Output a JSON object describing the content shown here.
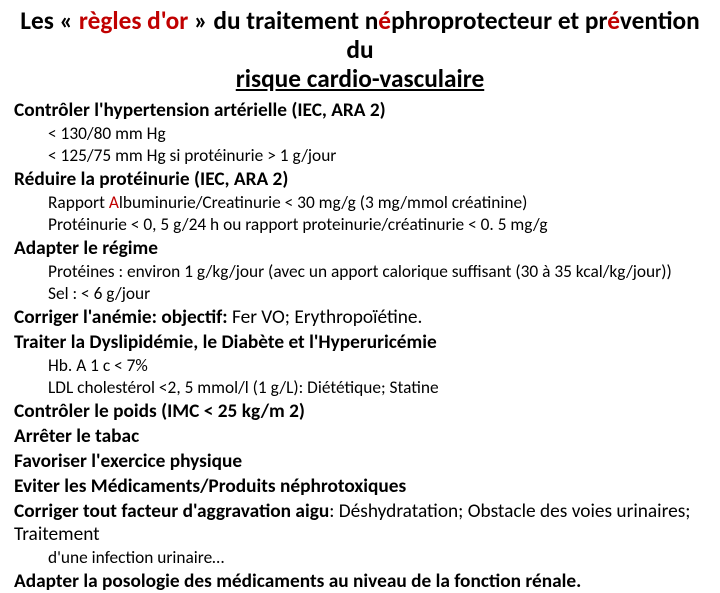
{
  "colors": {
    "accent": "#c00000",
    "text": "#000000",
    "background": "#ffffff"
  },
  "typography": {
    "title_fontsize_pt": 19,
    "h1_fontsize_pt": 14.5,
    "sub_fontsize_pt": 13
  },
  "title": {
    "part1_plain": "Les «",
    "part2_accent": " règles d'or ",
    "part3_plain": "» du traitement n",
    "part4_accent": "é",
    "part5_plain": "phroprotecteur et pr",
    "part6_accent": "é",
    "part7_plain": "vention du",
    "line2": "risque cardio-vasculaire"
  },
  "sections": [
    {
      "heading": "Contrôler l'hypertension artérielle (IEC, ARA 2)",
      "subs": [
        "< 130/80 mm Hg",
        "< 125/75 mm Hg si protéinurie > 1 g/jour"
      ]
    },
    {
      "heading": "Réduire la protéinurie (IEC, ARA 2)",
      "subs_rich": [
        {
          "pre": "Rapport ",
          "accent": "A",
          "post": "lbuminurie/Creatinurie < 30 mg/g (3 mg/mmol créatinine)"
        },
        {
          "pre": "Protéinurie < 0, 5 g/24 h ou rapport proteinurie/créatinurie < 0. 5 mg/g",
          "accent": "",
          "post": ""
        }
      ]
    },
    {
      "heading": "Adapter le régime",
      "subs": [
        "Protéines : environ 1 g/kg/jour (avec un apport calorique suffisant (30 à 35 kcal/kg/jour))",
        "Sel : < 6 g/jour"
      ]
    },
    {
      "heading_pre": "Corriger l'anémie: objectif:",
      "heading_post": "  Fer VO;  Erythropoïétine."
    },
    {
      "heading": "Traiter la Dyslipidémie, le Diabète et l'Hyperuricémie",
      "subs": [
        "Hb. A 1 c < 7%",
        "LDL  cholestérol <2, 5 mmol/l (1 g/L): Diététique; Statine"
      ]
    },
    {
      "heading": "Contrôler le poids (IMC < 25 kg/m 2)"
    },
    {
      "heading": "Arrêter le tabac"
    },
    {
      "heading": "Favoriser l'exercice physique"
    },
    {
      "heading": "Eviter les Médicaments/Produits néphrotoxiques"
    },
    {
      "heading_pre": "Corriger tout facteur d'aggravation aigu",
      "heading_post": ": Déshydratation; Obstacle des voies urinaires; Traitement",
      "subs": [
        "d'une infection urinaire…"
      ]
    },
    {
      "heading": "Adapter la posologie des médicaments au niveau de la fonction rénale."
    }
  ]
}
